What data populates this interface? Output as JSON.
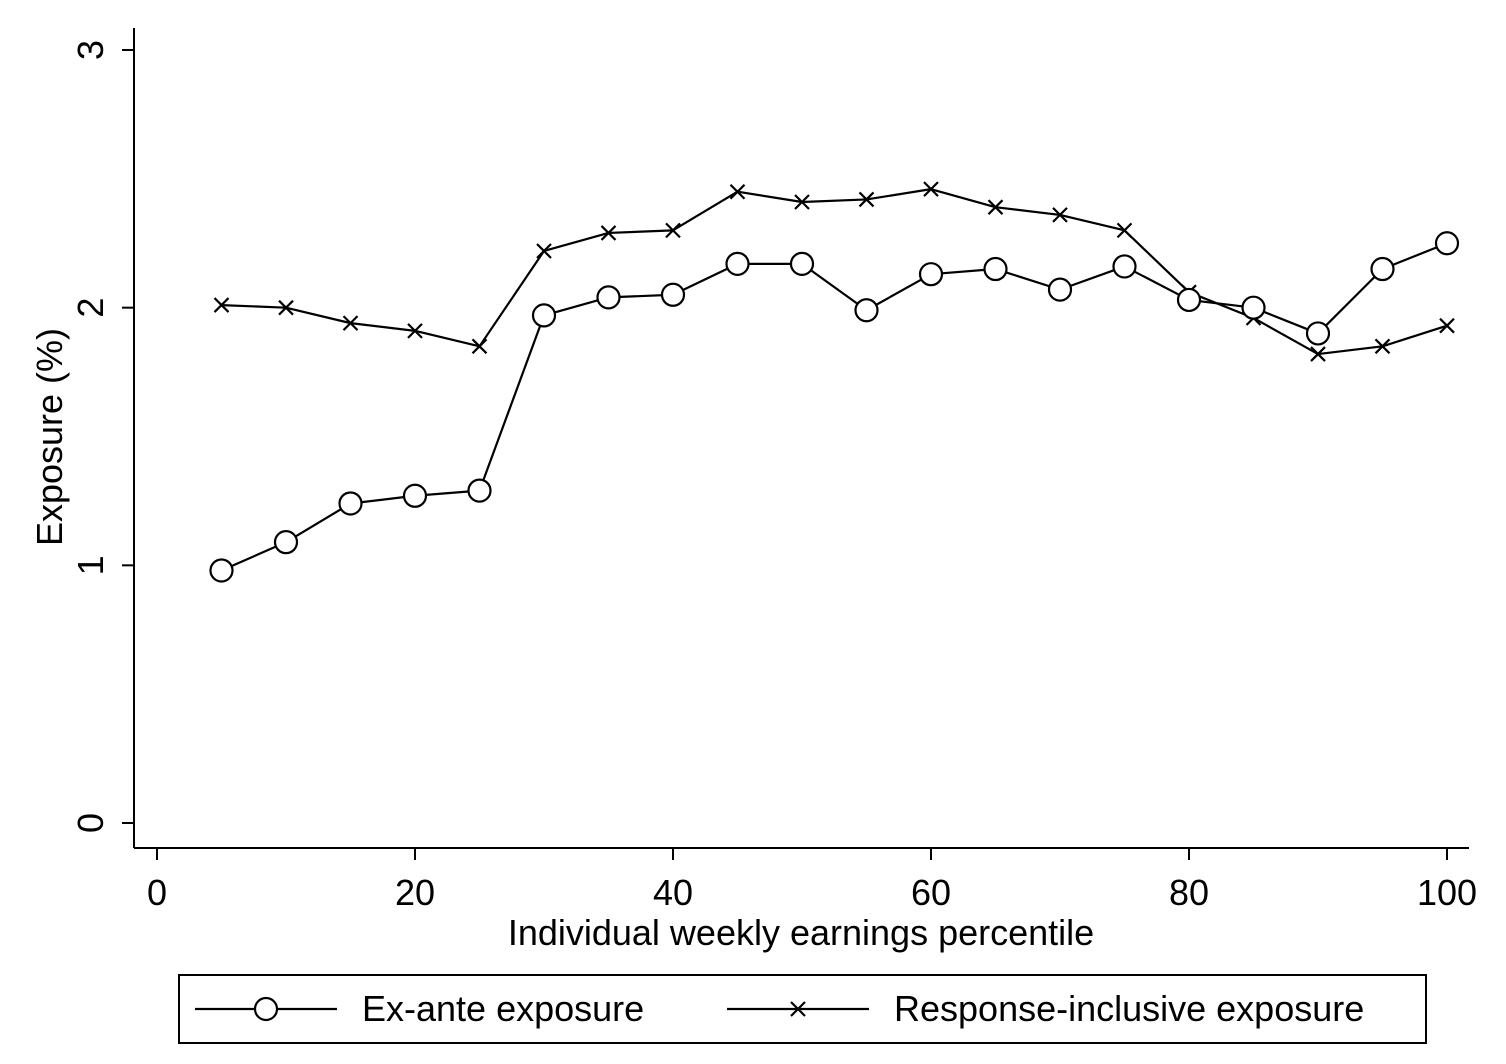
{
  "chart_data": {
    "type": "line",
    "title": "",
    "xlabel": "Individual weekly earnings percentile",
    "ylabel": "Exposure (%)",
    "xlim": [
      0,
      100
    ],
    "ylim": [
      0,
      3
    ],
    "xticks": [
      0,
      20,
      40,
      60,
      80,
      100
    ],
    "yticks": [
      0,
      1,
      2,
      3
    ],
    "grid": false,
    "legend_position": "bottom",
    "x": [
      5,
      10,
      15,
      20,
      25,
      30,
      35,
      40,
      45,
      50,
      55,
      60,
      65,
      70,
      75,
      80,
      85,
      90,
      95,
      100
    ],
    "series": [
      {
        "name": "Ex-ante exposure",
        "marker": "circle",
        "color": "#000000",
        "values": [
          0.98,
          1.09,
          1.24,
          1.27,
          1.29,
          1.97,
          2.04,
          2.05,
          2.17,
          2.17,
          1.99,
          2.13,
          2.15,
          2.07,
          2.16,
          2.03,
          2.0,
          1.9,
          2.15,
          2.25
        ]
      },
      {
        "name": "Response-inclusive exposure",
        "marker": "x",
        "color": "#000000",
        "values": [
          2.01,
          2.0,
          1.94,
          1.91,
          1.85,
          2.22,
          2.29,
          2.3,
          2.45,
          2.41,
          2.42,
          2.46,
          2.39,
          2.36,
          2.3,
          2.06,
          1.96,
          1.82,
          1.85,
          1.93
        ]
      }
    ]
  }
}
